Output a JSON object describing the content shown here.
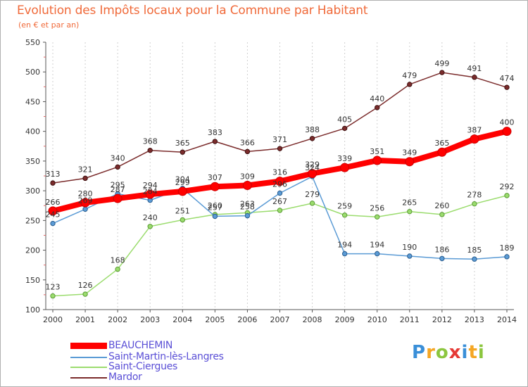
{
  "title": "Evolution des Impôts locaux pour la Commune par Habitant",
  "subtitle": "(en € et par an)",
  "brand": {
    "text": "Proxiti",
    "letters": [
      "P",
      "r",
      "o",
      "x",
      "i",
      "t",
      "i"
    ],
    "colors": [
      "#3a8fd8",
      "#f5a623",
      "#8cc63f",
      "#e53935",
      "#3a8fd8",
      "#f5a623",
      "#8cc63f"
    ]
  },
  "chart_data": {
    "type": "line",
    "title": "Evolution des Impôts locaux pour la Commune par Habitant",
    "subtitle": "(en € et par an)",
    "x": [
      "2000",
      "2001",
      "2002",
      "2003",
      "2004",
      "2005",
      "2006",
      "2007",
      "2008",
      "2009",
      "2010",
      "2011",
      "2012",
      "2013",
      "2014"
    ],
    "ylim": [
      100,
      550
    ],
    "yticks": [
      100,
      150,
      200,
      250,
      300,
      350,
      400,
      450,
      500,
      550
    ],
    "grid": "vertical",
    "legend_position": "bottom-left",
    "series": [
      {
        "name": "BEAUCHEMIN",
        "color": "#ff0000",
        "values": [
          266,
          280,
          287,
          294,
          299,
          307,
          309,
          316,
          329,
          339,
          351,
          349,
          365,
          387,
          400
        ],
        "labels": [
          "266",
          "280",
          "287",
          "294",
          "299",
          "307",
          "309",
          "316",
          "329",
          "339",
          "351",
          "349",
          "365",
          "387",
          "400"
        ]
      },
      {
        "name": "Saint-Martin-lès-Langres",
        "color": "#5b9bd5",
        "values": [
          245,
          269,
          295,
          284,
          304,
          257,
          258,
          296,
          324,
          194,
          194,
          190,
          186,
          185,
          189
        ],
        "labels": [
          "245",
          "269",
          "295",
          "284",
          "304",
          "257",
          "258",
          "296",
          "324",
          "194",
          "194",
          "190",
          "186",
          "185",
          "189"
        ]
      },
      {
        "name": "Saint-Ciergues",
        "color": "#9bdc6e",
        "values": [
          123,
          126,
          168,
          240,
          251,
          260,
          263,
          267,
          279,
          259,
          256,
          265,
          260,
          278,
          292
        ],
        "labels": [
          "123",
          "126",
          "168",
          "240",
          "251",
          "260",
          "263",
          "267",
          "279",
          "259",
          "256",
          "265",
          "260",
          "278",
          "292"
        ]
      },
      {
        "name": "Mardor",
        "color": "#7b2c2c",
        "values": [
          313,
          321,
          340,
          368,
          365,
          383,
          366,
          371,
          388,
          405,
          440,
          479,
          499,
          491,
          474
        ],
        "labels": [
          "313",
          "321",
          "340",
          "368",
          "365",
          "383",
          "366",
          "371",
          "388",
          "405",
          "440",
          "479",
          "499",
          "491",
          "474"
        ]
      }
    ]
  }
}
